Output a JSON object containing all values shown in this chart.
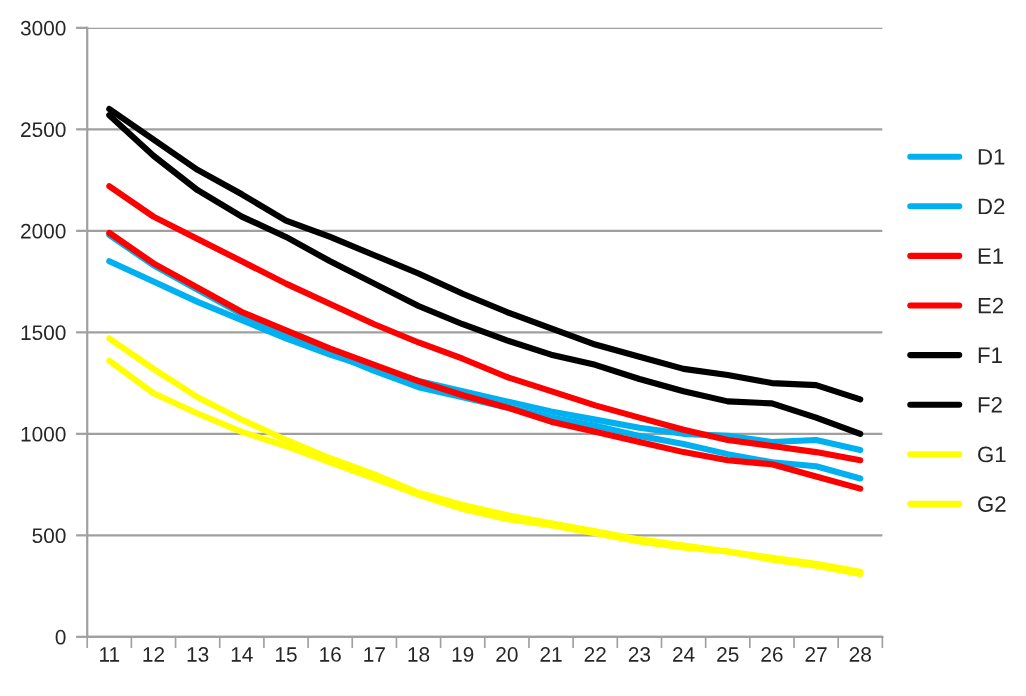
{
  "chart_data": {
    "type": "line",
    "categories": [
      "11",
      "12",
      "13",
      "14",
      "15",
      "16",
      "17",
      "18",
      "19",
      "20",
      "21",
      "22",
      "23",
      "24",
      "25",
      "26",
      "27",
      "28"
    ],
    "series": [
      {
        "name": "D1",
        "color": "#00b0f0",
        "values": [
          1850,
          1750,
          1650,
          1560,
          1470,
          1390,
          1320,
          1260,
          1210,
          1160,
          1110,
          1070,
          1030,
          1000,
          990,
          960,
          970,
          920
        ]
      },
      {
        "name": "D2",
        "color": "#00b0f0",
        "values": [
          1980,
          1830,
          1710,
          1590,
          1480,
          1400,
          1310,
          1230,
          1180,
          1130,
          1080,
          1040,
          990,
          950,
          900,
          860,
          840,
          780
        ]
      },
      {
        "name": "E1",
        "color": "#ff0000",
        "values": [
          2220,
          2070,
          1960,
          1850,
          1740,
          1640,
          1540,
          1450,
          1370,
          1280,
          1210,
          1140,
          1080,
          1020,
          970,
          940,
          910,
          870
        ]
      },
      {
        "name": "E2",
        "color": "#ff0000",
        "values": [
          1990,
          1840,
          1720,
          1600,
          1510,
          1420,
          1340,
          1260,
          1190,
          1130,
          1060,
          1010,
          960,
          910,
          870,
          850,
          790,
          730
        ]
      },
      {
        "name": "F1",
        "color": "#000000",
        "values": [
          2600,
          2450,
          2300,
          2180,
          2050,
          1970,
          1880,
          1790,
          1690,
          1600,
          1520,
          1440,
          1380,
          1320,
          1290,
          1250,
          1240,
          1170
        ]
      },
      {
        "name": "F2",
        "color": "#000000",
        "values": [
          2570,
          2370,
          2200,
          2070,
          1970,
          1850,
          1740,
          1630,
          1540,
          1460,
          1390,
          1340,
          1270,
          1210,
          1160,
          1150,
          1080,
          1000
        ]
      },
      {
        "name": "G1",
        "color": "#ffff00",
        "values": [
          1470,
          1320,
          1180,
          1070,
          970,
          880,
          800,
          710,
          650,
          600,
          560,
          520,
          480,
          450,
          420,
          390,
          360,
          320
        ]
      },
      {
        "name": "G2",
        "color": "#ffff00",
        "values": [
          1360,
          1200,
          1100,
          1010,
          940,
          860,
          780,
          700,
          630,
          580,
          550,
          510,
          470,
          440,
          420,
          380,
          350,
          310
        ]
      }
    ],
    "ylim": [
      0,
      3000
    ],
    "yticks": [
      0,
      500,
      1000,
      1500,
      2000,
      2500,
      3000
    ],
    "grid": "y",
    "legend": "right",
    "marker": "none",
    "line_style": "solid"
  }
}
